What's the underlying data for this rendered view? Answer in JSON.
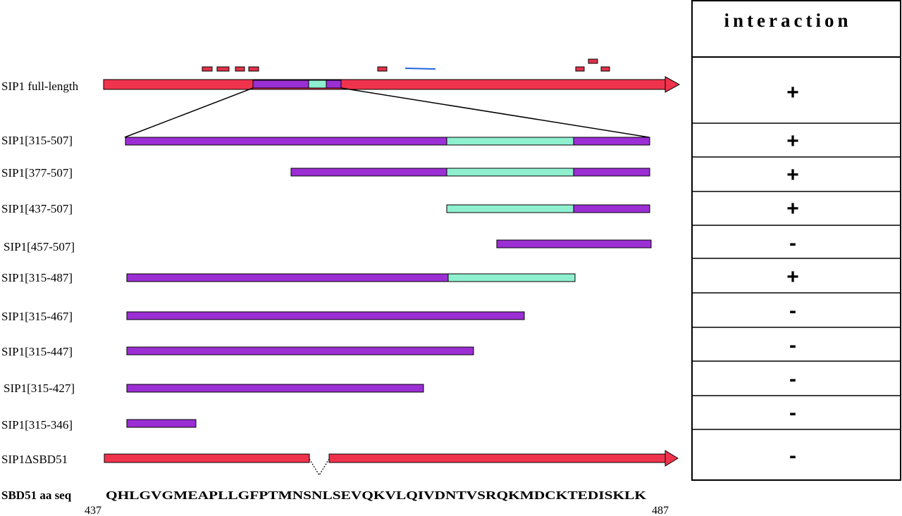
{
  "colors": {
    "full_length": "#f0334d",
    "sbd_core": "#9b2fd4",
    "sbd51": "#8ff0d0",
    "tick_marks": "#e0324a",
    "blue_mark": "#2266dd"
  },
  "interaction_header": "interaction",
  "constructs": [
    {
      "label": "SIP1 full-length",
      "interaction": "+"
    },
    {
      "label": "SIP1[315-507]",
      "interaction": "+"
    },
    {
      "label": "SIP1[377-507]",
      "interaction": "+"
    },
    {
      "label": "SIP1[437-507]",
      "interaction": "+"
    },
    {
      "label": "SIP1[457-507]",
      "interaction": "-"
    },
    {
      "label": "SIP1[315-487]",
      "interaction": "+"
    },
    {
      "label": "SIP1[315-467]",
      "interaction": "-"
    },
    {
      "label": "SIP1[315-447]",
      "interaction": "-"
    },
    {
      "label": "SIP1[315-427]",
      "interaction": "-"
    },
    {
      "label": "SIP1[315-346]",
      "interaction": "-"
    },
    {
      "label": "SIP1ΔSBD51",
      "interaction": "-"
    }
  ],
  "sequence": {
    "label": "SBD51 aa seq",
    "residues": "QHLGVGMEAPLLGFPTMNSNLSEVQKVLQIVDNTVSRQKMDCKTEDISKLK",
    "start": "437",
    "end": "487"
  }
}
